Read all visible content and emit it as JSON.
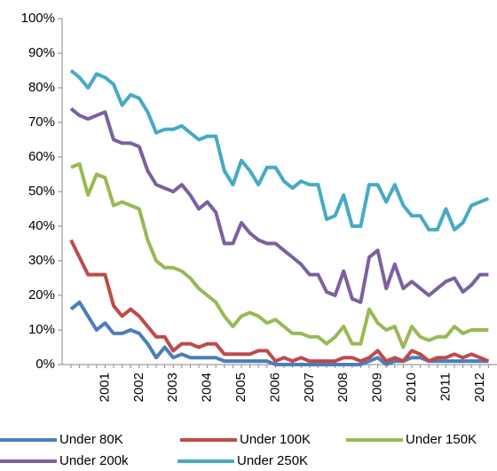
{
  "chart_data": {
    "type": "line",
    "categories": [
      null,
      null,
      null,
      null,
      "2001",
      null,
      null,
      null,
      "2002",
      null,
      null,
      null,
      "2003",
      null,
      null,
      null,
      "2004",
      null,
      null,
      null,
      "2005",
      null,
      null,
      null,
      "2006",
      null,
      null,
      null,
      "2007",
      null,
      null,
      null,
      "2008",
      null,
      null,
      null,
      "2009",
      null,
      null,
      null,
      "2010",
      null,
      null,
      null,
      "2011",
      null,
      null,
      null,
      "2012",
      null
    ],
    "ylim": [
      0,
      100
    ],
    "yticks": [
      {
        "value": 0,
        "label": "0%"
      },
      {
        "value": 10,
        "label": "10%"
      },
      {
        "value": 20,
        "label": "20%"
      },
      {
        "value": 30,
        "label": "30%"
      },
      {
        "value": 40,
        "label": "40%"
      },
      {
        "value": 50,
        "label": "50%"
      },
      {
        "value": 60,
        "label": "60%"
      },
      {
        "value": 70,
        "label": "70%"
      },
      {
        "value": 80,
        "label": "80%"
      },
      {
        "value": 90,
        "label": "90%"
      },
      {
        "value": 100,
        "label": "100%"
      }
    ],
    "grid": false,
    "legend": "bottom",
    "series": [
      {
        "name": "Under 80K",
        "color": "#4a7ebb",
        "values": [
          16,
          18,
          14,
          10,
          12,
          9,
          9,
          10,
          9,
          6,
          2,
          5,
          2,
          3,
          2,
          2,
          2,
          2,
          1,
          1,
          1,
          1,
          1,
          1,
          0,
          0,
          0,
          0,
          0,
          0,
          0,
          0,
          0,
          0,
          0,
          1,
          2,
          0,
          1,
          1,
          2,
          2,
          1,
          1,
          1,
          1,
          1,
          1,
          1,
          1
        ]
      },
      {
        "name": "Under 100K",
        "color": "#be4b48",
        "values": [
          36,
          31,
          26,
          26,
          26,
          17,
          14,
          16,
          14,
          11,
          8,
          8,
          4,
          6,
          6,
          5,
          6,
          6,
          3,
          3,
          3,
          3,
          4,
          4,
          1,
          2,
          1,
          2,
          1,
          1,
          1,
          1,
          2,
          2,
          1,
          2,
          4,
          1,
          2,
          1,
          4,
          3,
          1,
          2,
          2,
          3,
          2,
          3,
          2,
          1
        ]
      },
      {
        "name": "Under 150K",
        "color": "#98b954",
        "values": [
          57,
          58,
          49,
          55,
          54,
          46,
          47,
          46,
          45,
          36,
          30,
          28,
          28,
          27,
          25,
          22,
          20,
          18,
          14,
          11,
          14,
          15,
          14,
          12,
          13,
          11,
          9,
          9,
          8,
          8,
          6,
          8,
          11,
          6,
          6,
          16,
          12,
          10,
          11,
          5,
          11,
          8,
          7,
          8,
          8,
          11,
          9,
          10,
          10,
          10
        ]
      },
      {
        "name": "Under 200k",
        "color": "#7d60a0",
        "values": [
          74,
          72,
          71,
          72,
          73,
          65,
          64,
          64,
          63,
          56,
          52,
          51,
          50,
          52,
          49,
          45,
          47,
          44,
          35,
          35,
          41,
          38,
          36,
          35,
          35,
          33,
          31,
          29,
          26,
          26,
          21,
          20,
          27,
          19,
          18,
          31,
          33,
          22,
          29,
          22,
          24,
          22,
          20,
          22,
          24,
          25,
          21,
          23,
          26,
          26
        ]
      },
      {
        "name": "Under 250K",
        "color": "#46aac5",
        "values": [
          85,
          83,
          80,
          84,
          83,
          81,
          75,
          78,
          77,
          73,
          67,
          68,
          68,
          69,
          67,
          65,
          66,
          66,
          56,
          52,
          59,
          56,
          52,
          57,
          57,
          53,
          51,
          53,
          52,
          52,
          42,
          43,
          49,
          40,
          40,
          52,
          52,
          47,
          52,
          46,
          43,
          43,
          39,
          39,
          45,
          39,
          41,
          46,
          47,
          48
        ]
      }
    ]
  }
}
